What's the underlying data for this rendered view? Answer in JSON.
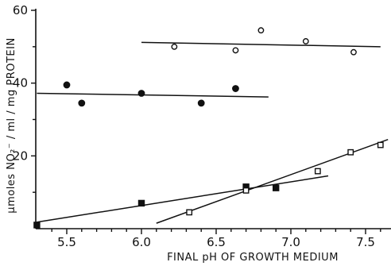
{
  "chart_data": {
    "type": "scatter",
    "xlabel": "FINAL pH OF GROWTH MEDIUM",
    "ylabel": "μmoles NO₂⁻ / ml / mg PROTEIN",
    "xlim": [
      5.3,
      7.65
    ],
    "ylim": [
      0,
      60
    ],
    "xticks": [
      5.5,
      6.0,
      6.5,
      7.0,
      7.5
    ],
    "xtick_labels": [
      "5.5",
      "6.0",
      "6.5",
      "7.0",
      "7.5"
    ],
    "yticks": [
      20,
      40,
      60
    ],
    "ytick_labels": [
      "20",
      "40",
      "60"
    ],
    "grid": false,
    "series": [
      {
        "marker": "filled-circle",
        "points": [
          [
            5.5,
            39.5
          ],
          [
            5.6,
            34.5
          ],
          [
            6.0,
            37.2
          ],
          [
            6.4,
            34.5
          ],
          [
            6.63,
            38.5
          ]
        ],
        "fit": [
          [
            5.3,
            37.2
          ],
          [
            6.85,
            36.2
          ]
        ]
      },
      {
        "marker": "open-circle",
        "points": [
          [
            6.22,
            50.0
          ],
          [
            6.63,
            49.0
          ],
          [
            6.8,
            54.5
          ],
          [
            7.1,
            51.5
          ],
          [
            7.42,
            48.5
          ]
        ],
        "fit": [
          [
            6.0,
            51.2
          ],
          [
            7.6,
            50.0
          ]
        ]
      },
      {
        "marker": "filled-square",
        "points": [
          [
            5.3,
            1.0
          ],
          [
            6.0,
            7.0
          ],
          [
            6.7,
            11.5
          ],
          [
            6.9,
            11.2
          ]
        ],
        "fit": [
          [
            5.3,
            1.8
          ],
          [
            7.25,
            14.5
          ]
        ]
      },
      {
        "marker": "open-square",
        "points": [
          [
            6.32,
            4.5
          ],
          [
            6.7,
            10.5
          ],
          [
            7.18,
            15.8
          ],
          [
            7.4,
            21.0
          ],
          [
            7.6,
            23.0
          ]
        ],
        "fit": [
          [
            6.1,
            1.5
          ],
          [
            7.65,
            24.5
          ]
        ]
      }
    ]
  }
}
